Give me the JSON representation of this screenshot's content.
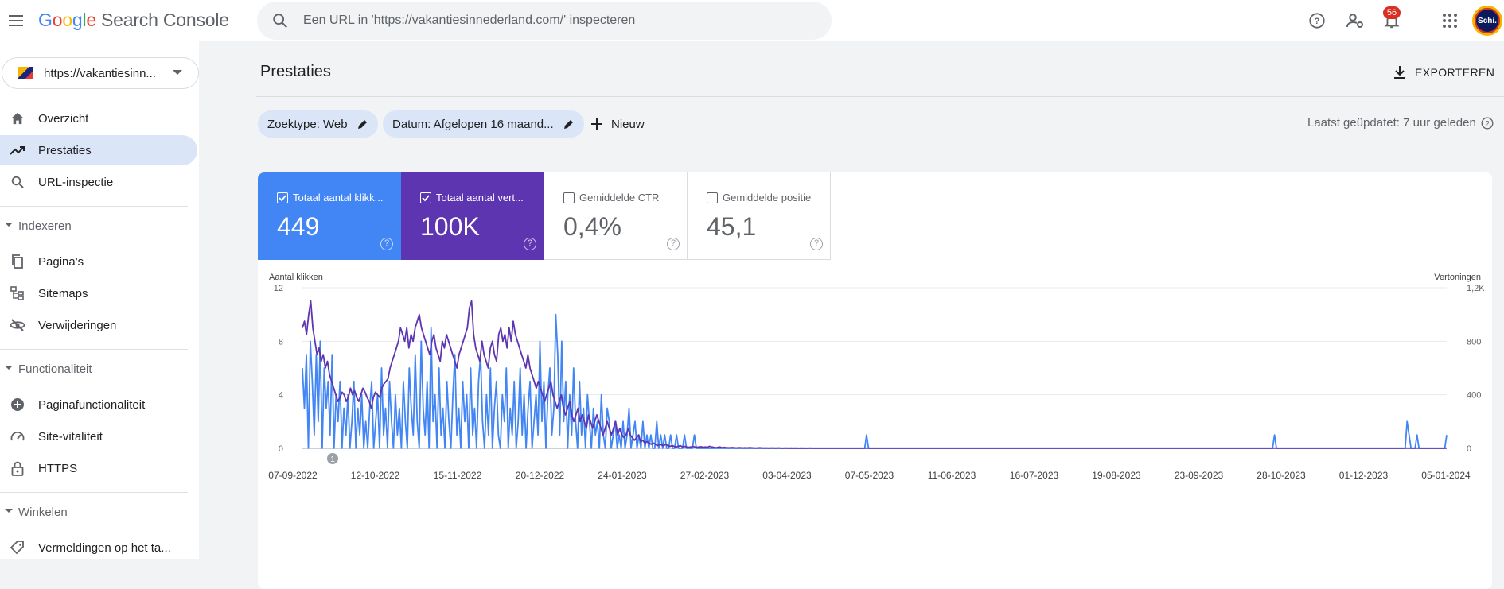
{
  "header": {
    "logo_google": "Google",
    "logo_product": "Search Console",
    "search_placeholder": "Een URL in 'https://vakantiesinnederland.com/' inspecteren",
    "notifications_count": "56",
    "avatar_text": "Schi."
  },
  "sidebar": {
    "property": "https://vakantiesinn...",
    "items": [
      {
        "label": "Overzicht",
        "icon": "home-icon"
      },
      {
        "label": "Prestaties",
        "icon": "trending-up-icon",
        "active": true
      },
      {
        "label": "URL-inspectie",
        "icon": "search-icon"
      }
    ],
    "sections": [
      {
        "label": "Indexeren",
        "items": [
          {
            "label": "Pagina's",
            "icon": "pages-icon"
          },
          {
            "label": "Sitemaps",
            "icon": "sitemap-icon"
          },
          {
            "label": "Verwijderingen",
            "icon": "eye-off-icon"
          }
        ]
      },
      {
        "label": "Functionaliteit",
        "items": [
          {
            "label": "Paginafunctionaliteit",
            "icon": "plus-circle-icon"
          },
          {
            "label": "Site-vitaliteit",
            "icon": "gauge-icon"
          },
          {
            "label": "HTTPS",
            "icon": "lock-icon"
          }
        ]
      },
      {
        "label": "Winkelen",
        "items": [
          {
            "label": "Vermeldingen op het ta...",
            "icon": "tag-icon"
          }
        ]
      }
    ]
  },
  "main": {
    "title": "Prestaties",
    "export_label": "EXPORTEREN",
    "filters": {
      "search_type": "Zoektype: Web",
      "date": "Datum: Afgelopen 16 maand...",
      "new_label": "Nieuw"
    },
    "last_updated": "Laatst geüpdatet: 7 uur geleden",
    "metrics": [
      {
        "label": "Totaal aantal klikk...",
        "value": "449",
        "checked": true,
        "color": "#4285f4"
      },
      {
        "label": "Totaal aantal vert...",
        "value": "100K",
        "checked": true,
        "color": "#5e35b1"
      },
      {
        "label": "Gemiddelde CTR",
        "value": "0,4%",
        "checked": false
      },
      {
        "label": "Gemiddelde positie",
        "value": "45,1",
        "checked": false
      }
    ]
  },
  "chart_data": {
    "type": "line",
    "left_axis_label": "Aantal klikken",
    "right_axis_label": "Vertoningen",
    "left_ticks": [
      "12",
      "8",
      "4",
      "0"
    ],
    "right_ticks": [
      "1,2K",
      "800",
      "400",
      "0"
    ],
    "left_ylim": [
      0,
      12
    ],
    "right_ylim": [
      0,
      1200
    ],
    "x_ticks": [
      "07-09-2022",
      "12-10-2022",
      "15-11-2022",
      "20-12-2022",
      "24-01-2023",
      "27-02-2023",
      "03-04-2023",
      "07-05-2023",
      "11-06-2023",
      "16-07-2023",
      "19-08-2023",
      "23-09-2023",
      "28-10-2023",
      "01-12-2023",
      "05-01-2024"
    ],
    "annotation": "1",
    "grid": true,
    "series": [
      {
        "name": "Totaal aantal klikken",
        "axis": "left",
        "color": "#4285f4",
        "values": [
          6,
          3,
          7,
          0,
          8,
          5,
          1,
          7,
          2,
          8,
          0,
          6,
          3,
          5,
          1,
          7,
          0,
          4,
          2,
          5,
          0,
          3,
          1,
          4,
          0,
          2,
          5,
          0,
          3,
          1,
          4,
          0,
          2,
          0,
          3,
          5,
          0,
          2,
          4,
          0,
          6,
          1,
          3,
          0,
          5,
          2,
          0,
          4,
          1,
          3,
          0,
          5,
          2,
          0,
          6,
          3,
          1,
          7,
          2,
          0,
          8,
          3,
          1,
          5,
          0,
          9,
          2,
          4,
          0,
          6,
          1,
          3,
          0,
          5,
          2,
          0,
          4,
          7,
          1,
          3,
          0,
          5,
          2,
          4,
          0,
          6,
          1,
          3,
          0,
          5,
          7,
          2,
          0,
          4,
          1,
          6,
          0,
          3,
          5,
          1,
          0,
          4,
          2,
          6,
          0,
          3,
          1,
          5,
          0,
          2,
          6,
          1,
          4,
          0,
          3,
          5,
          0,
          2,
          4,
          1,
          8,
          2,
          5,
          0,
          4,
          6,
          1,
          3,
          10,
          7,
          1,
          8,
          2,
          5,
          0,
          4,
          1,
          6,
          2,
          0,
          5,
          1,
          3,
          0,
          4,
          2,
          0,
          3,
          1,
          2,
          0,
          4,
          1,
          0,
          3,
          2,
          0,
          1,
          2,
          0,
          1,
          0,
          2,
          0,
          1,
          3,
          0,
          1,
          2,
          0,
          1,
          0,
          2,
          0,
          1,
          0,
          1,
          0,
          0,
          2,
          0,
          1,
          0,
          1,
          0,
          0,
          1,
          0,
          0,
          1,
          0,
          0,
          0,
          1,
          0,
          0,
          0,
          0,
          1,
          0,
          0,
          0,
          0,
          0,
          0,
          0,
          0,
          0,
          0,
          0,
          0,
          0,
          0,
          0,
          0,
          0,
          0,
          0,
          0,
          0,
          0,
          0,
          0,
          0,
          0,
          0,
          0,
          0,
          0,
          0,
          0,
          0,
          0,
          0,
          0,
          0,
          0,
          0,
          0,
          0,
          0,
          0,
          0,
          0,
          0,
          0,
          0,
          0,
          0,
          0,
          0,
          0,
          0,
          0,
          0,
          0,
          0,
          0,
          0,
          0,
          0,
          0,
          0,
          0,
          0,
          0,
          0,
          0,
          0,
          0,
          0,
          0,
          0,
          0,
          0,
          0,
          0,
          0,
          0,
          0,
          0,
          0,
          0,
          0,
          0,
          1,
          0,
          0,
          0,
          0,
          0,
          0,
          0,
          0,
          0,
          0,
          0,
          0,
          0,
          0,
          0,
          0,
          0,
          0,
          0,
          0,
          0,
          0,
          0,
          0,
          0,
          0,
          0,
          0,
          0,
          0,
          0,
          0,
          0,
          0,
          0,
          0,
          0,
          0,
          0,
          0,
          0,
          0,
          0,
          0,
          0,
          0,
          0,
          0,
          0,
          0,
          0,
          0,
          0,
          0,
          0,
          0,
          0,
          0,
          0,
          0,
          0,
          0,
          0,
          0,
          0,
          0,
          0,
          0,
          0,
          0,
          0,
          0,
          0,
          0,
          0,
          0,
          0,
          0,
          0,
          0,
          0,
          0,
          0,
          0,
          0,
          0,
          0,
          0,
          0,
          0,
          0,
          0,
          0,
          0,
          0,
          0,
          0,
          0,
          0,
          0,
          0,
          0,
          0,
          0,
          0,
          0,
          0,
          0,
          0,
          0,
          0,
          0,
          0,
          0,
          0,
          0,
          0,
          0,
          0,
          0,
          0,
          0,
          0,
          0,
          0,
          0,
          0,
          0,
          0,
          0,
          0,
          0,
          0,
          0,
          0,
          0,
          0,
          0,
          0,
          0,
          0,
          0,
          0,
          0,
          0,
          0,
          0,
          0,
          0,
          0,
          0,
          0,
          0,
          0,
          0,
          0,
          0,
          0,
          0,
          0,
          0,
          0,
          0,
          0,
          0,
          0,
          0,
          0,
          0,
          0,
          0,
          0,
          0,
          0,
          0,
          0,
          0,
          0,
          0,
          0,
          0,
          0,
          0,
          0,
          0,
          0,
          0,
          0,
          0,
          0,
          0,
          0,
          0,
          0,
          0,
          0,
          0,
          0,
          0,
          0,
          0,
          0,
          0,
          0,
          0,
          1,
          0,
          0,
          0,
          0,
          0,
          0,
          0,
          0,
          0,
          0,
          0,
          0,
          0,
          0,
          0,
          0,
          0,
          0,
          0,
          0,
          0,
          0,
          0,
          0,
          0,
          0,
          0,
          0,
          0,
          0,
          0,
          0,
          0,
          0,
          0,
          0,
          0,
          0,
          0,
          0,
          0,
          0,
          0,
          0,
          0,
          0,
          0,
          0,
          0,
          0,
          0,
          0,
          0,
          0,
          0,
          0,
          0,
          0,
          0,
          0,
          0,
          0,
          0,
          0,
          0,
          0,
          2,
          1,
          0,
          0,
          0,
          1,
          0,
          0,
          0,
          0,
          0,
          0,
          0,
          0,
          0,
          0,
          0,
          0,
          0,
          0,
          1
        ]
      },
      {
        "name": "Totaal aantal vertoningen",
        "axis": "right",
        "color": "#5e35b1",
        "values": [
          900,
          950,
          850,
          1000,
          1100,
          900,
          800,
          700,
          750,
          650,
          700,
          600,
          650,
          550,
          500,
          450,
          400,
          350,
          380,
          420,
          400,
          350,
          380,
          450,
          400,
          430,
          380,
          350,
          400,
          450,
          420,
          380,
          350,
          300,
          380,
          420,
          400,
          380,
          450,
          480,
          500,
          520,
          600,
          650,
          700,
          750,
          800,
          900,
          850,
          800,
          900,
          750,
          850,
          800,
          900,
          950,
          1000,
          900,
          850,
          800,
          750,
          700,
          800,
          850,
          750,
          700,
          650,
          800,
          750,
          850,
          800,
          750,
          700,
          650,
          600,
          700,
          750,
          800,
          850,
          900,
          1050,
          1100,
          850,
          750,
          700,
          650,
          800,
          700,
          650,
          600,
          750,
          800,
          700,
          650,
          850,
          900,
          800,
          850,
          750,
          900,
          800,
          950,
          850,
          800,
          750,
          700,
          650,
          600,
          700,
          600,
          550,
          500,
          450,
          500,
          450,
          400,
          350,
          400,
          450,
          500,
          400,
          350,
          300,
          350,
          400,
          300,
          250,
          300,
          350,
          250,
          200,
          250,
          300,
          200,
          250,
          200,
          150,
          250,
          200,
          150,
          200,
          250,
          200,
          150,
          100,
          150,
          200,
          150,
          100,
          150,
          200,
          100,
          150,
          100,
          80,
          100,
          150,
          100,
          80,
          60,
          80,
          100,
          50,
          60,
          40,
          50,
          40,
          30,
          40,
          30,
          20,
          30,
          25,
          20,
          30,
          20,
          15,
          20,
          15,
          10,
          15,
          20,
          10,
          15,
          10,
          8,
          10,
          15,
          10,
          8,
          10,
          12,
          8,
          10,
          8,
          15,
          10,
          8,
          5,
          8,
          10,
          5,
          8,
          5,
          4,
          5,
          6,
          4,
          3,
          5,
          4,
          3,
          4,
          3,
          5,
          4,
          3,
          2,
          3,
          4,
          3,
          2,
          3,
          2,
          2,
          3,
          2,
          2,
          3,
          2,
          1,
          2,
          2,
          1,
          2,
          1,
          2,
          1,
          1,
          2,
          1,
          1,
          1,
          2,
          1,
          1,
          1,
          1,
          1,
          1,
          1,
          1,
          1,
          1,
          1,
          1,
          1,
          1,
          1,
          1,
          1,
          1,
          1,
          1,
          1,
          1,
          1,
          1,
          1,
          1,
          1,
          1,
          1,
          1,
          1,
          1,
          1,
          1,
          1,
          1,
          1,
          1,
          1,
          1,
          1,
          1,
          1,
          1,
          1,
          1,
          1,
          1,
          1,
          1,
          1,
          1,
          1,
          1,
          1,
          1,
          1,
          1,
          1,
          1,
          1,
          1,
          1,
          1,
          1,
          1,
          1,
          1,
          1,
          1,
          1,
          1,
          1,
          1,
          1,
          1,
          1,
          1,
          1,
          1,
          1,
          1,
          1,
          1,
          1,
          1,
          1,
          1,
          1,
          1,
          1,
          1,
          1,
          1,
          1,
          1,
          1,
          1,
          1,
          1,
          1,
          1,
          1,
          1,
          1,
          1,
          1,
          1,
          1,
          1,
          1,
          1,
          1,
          1,
          1,
          1,
          1,
          1,
          1,
          1,
          1,
          1,
          1,
          1,
          1,
          1,
          1,
          1,
          1,
          1,
          1,
          1,
          1,
          1,
          1,
          1,
          1,
          1,
          1,
          1,
          1,
          1,
          1,
          1,
          1,
          1,
          1,
          1,
          1,
          1,
          1,
          1,
          1,
          1,
          1,
          1,
          1,
          1,
          1,
          1,
          1,
          1,
          1,
          1,
          1,
          1,
          1,
          1,
          1,
          1,
          1,
          1,
          1,
          1,
          1,
          1,
          1,
          1,
          1,
          1,
          1,
          1,
          1,
          1,
          1,
          1,
          1,
          1,
          1,
          1,
          1,
          1,
          1,
          1,
          1,
          1,
          1,
          1,
          1,
          1,
          1,
          1,
          1,
          1,
          1,
          1,
          1,
          1,
          1,
          1,
          1,
          1,
          1,
          1,
          1,
          1,
          1,
          1,
          1,
          1,
          1,
          1,
          1,
          1,
          1,
          1,
          1,
          1,
          1,
          1,
          1,
          1,
          1,
          1,
          1,
          1,
          1,
          1,
          1,
          1,
          1,
          1,
          1,
          1,
          1,
          1,
          1,
          1,
          1,
          1,
          1,
          1,
          1,
          1,
          1,
          1,
          1,
          1,
          1,
          1,
          1,
          1,
          1,
          1,
          1,
          1,
          1,
          1,
          1,
          1,
          1,
          1,
          1,
          1,
          1,
          1,
          1,
          1,
          1,
          1,
          1,
          1,
          1,
          1,
          1,
          1,
          1,
          1,
          1,
          1,
          1,
          1,
          1,
          1,
          1,
          1,
          1,
          1,
          1,
          1,
          1,
          1,
          1,
          1,
          1
        ]
      }
    ]
  }
}
